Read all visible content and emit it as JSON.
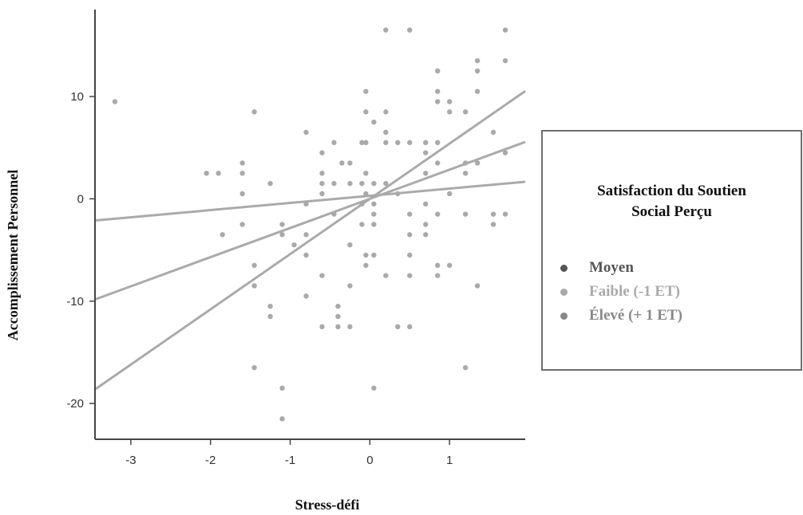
{
  "chart_data": {
    "type": "scatter",
    "title": "",
    "xlabel": "Stress-défi",
    "ylabel": "Accomplissement Personnel",
    "xlim": [
      -3.45,
      1.95
    ],
    "ylim": [
      -23.5,
      18.5
    ],
    "xticks": [
      -3,
      -2,
      -1,
      0,
      1
    ],
    "yticks": [
      10,
      0,
      -10,
      -20
    ],
    "grid": false,
    "legend_position": "right",
    "legend": {
      "title_line1": "Satisfaction du Soutien",
      "title_line2": "Social Perçu",
      "entries": [
        {
          "label": "Moyen",
          "color": "#555555"
        },
        {
          "label": "Faible (-1 ET)",
          "color": "#aaaaaa"
        },
        {
          "label": "Élevé (+ 1 ET)",
          "color": "#888888"
        }
      ]
    },
    "points": [
      [
        -3.2,
        9.5
      ],
      [
        -2.05,
        2.5
      ],
      [
        -1.9,
        2.5
      ],
      [
        -1.85,
        -3.5
      ],
      [
        -1.6,
        3.5
      ],
      [
        -1.6,
        2.5
      ],
      [
        -1.6,
        0.5
      ],
      [
        -1.6,
        -2.5
      ],
      [
        -1.45,
        8.5
      ],
      [
        -1.45,
        -6.5
      ],
      [
        -1.45,
        -8.5
      ],
      [
        -1.45,
        -16.5
      ],
      [
        -1.25,
        1.5
      ],
      [
        -1.25,
        -10.5
      ],
      [
        -1.25,
        -11.5
      ],
      [
        -1.1,
        -2.5
      ],
      [
        -1.1,
        -3.5
      ],
      [
        -1.1,
        -18.5
      ],
      [
        -1.1,
        -21.5
      ],
      [
        -0.95,
        -4.5
      ],
      [
        -0.8,
        6.5
      ],
      [
        -0.8,
        -0.5
      ],
      [
        -0.8,
        -3.5
      ],
      [
        -0.8,
        -5.5
      ],
      [
        -0.8,
        -9.5
      ],
      [
        -0.6,
        4.5
      ],
      [
        -0.6,
        2.5
      ],
      [
        -0.6,
        1.5
      ],
      [
        -0.6,
        0.5
      ],
      [
        -0.6,
        -7.5
      ],
      [
        -0.6,
        -12.5
      ],
      [
        -0.45,
        5.5
      ],
      [
        -0.45,
        1.5
      ],
      [
        -0.45,
        -1.5
      ],
      [
        -0.4,
        -10.5
      ],
      [
        -0.4,
        -11.5
      ],
      [
        -0.4,
        -12.5
      ],
      [
        -0.35,
        3.5
      ],
      [
        -0.25,
        3.5
      ],
      [
        -0.25,
        1.5
      ],
      [
        -0.25,
        -4.5
      ],
      [
        -0.25,
        -8.5
      ],
      [
        -0.25,
        -12.5
      ],
      [
        -0.1,
        5.5
      ],
      [
        -0.1,
        1.5
      ],
      [
        -0.1,
        -0.5
      ],
      [
        -0.1,
        -2.5
      ],
      [
        -0.05,
        10.5
      ],
      [
        -0.05,
        8.5
      ],
      [
        -0.05,
        5.5
      ],
      [
        -0.05,
        2.5
      ],
      [
        -0.05,
        0.5
      ],
      [
        -0.05,
        -5.5
      ],
      [
        -0.05,
        -6.5
      ],
      [
        0.05,
        7.5
      ],
      [
        0.05,
        1.5
      ],
      [
        0.05,
        -0.5
      ],
      [
        0.05,
        -1.5
      ],
      [
        0.05,
        -2.5
      ],
      [
        0.05,
        -5.5
      ],
      [
        0.05,
        -18.5
      ],
      [
        0.2,
        16.5
      ],
      [
        0.2,
        8.5
      ],
      [
        0.2,
        6.5
      ],
      [
        0.2,
        5.5
      ],
      [
        0.2,
        1.5
      ],
      [
        0.2,
        -7.5
      ],
      [
        0.35,
        5.5
      ],
      [
        0.35,
        0.5
      ],
      [
        0.35,
        -12.5
      ],
      [
        0.5,
        16.5
      ],
      [
        0.5,
        5.5
      ],
      [
        0.5,
        -1.5
      ],
      [
        0.5,
        -3.5
      ],
      [
        0.5,
        -5.5
      ],
      [
        0.5,
        -7.5
      ],
      [
        0.5,
        -12.5
      ],
      [
        0.7,
        5.5
      ],
      [
        0.7,
        4.5
      ],
      [
        0.7,
        2.5
      ],
      [
        0.7,
        -0.5
      ],
      [
        0.7,
        -2.5
      ],
      [
        0.7,
        -3.5
      ],
      [
        0.85,
        12.5
      ],
      [
        0.85,
        10.5
      ],
      [
        0.85,
        9.5
      ],
      [
        0.85,
        5.5
      ],
      [
        0.85,
        3.5
      ],
      [
        0.85,
        -1.5
      ],
      [
        0.85,
        -6.5
      ],
      [
        0.85,
        -7.5
      ],
      [
        1.0,
        9.5
      ],
      [
        1.0,
        8.5
      ],
      [
        1.0,
        0.5
      ],
      [
        1.0,
        -6.5
      ],
      [
        1.2,
        8.5
      ],
      [
        1.2,
        3.5
      ],
      [
        1.2,
        2.5
      ],
      [
        1.2,
        -1.5
      ],
      [
        1.2,
        -16.5
      ],
      [
        1.35,
        13.5
      ],
      [
        1.35,
        12.5
      ],
      [
        1.35,
        10.5
      ],
      [
        1.35,
        3.5
      ],
      [
        1.35,
        -8.5
      ],
      [
        1.55,
        6.5
      ],
      [
        1.55,
        -1.5
      ],
      [
        1.55,
        -2.5
      ],
      [
        1.7,
        16.5
      ],
      [
        1.7,
        13.5
      ],
      [
        1.7,
        4.5
      ],
      [
        1.7,
        -1.5
      ]
    ],
    "lines": [
      {
        "level": "Faible (-1 ET)",
        "slope": 0.7,
        "intercept": 0.3,
        "color": "#aaaaaa"
      },
      {
        "level": "Moyen",
        "slope": 2.85,
        "intercept": 0.0,
        "color": "#aaaaaa"
      },
      {
        "level": "Élevé (+ 1 ET)",
        "slope": 5.4,
        "intercept": 0.0,
        "color": "#aaaaaa"
      }
    ]
  }
}
